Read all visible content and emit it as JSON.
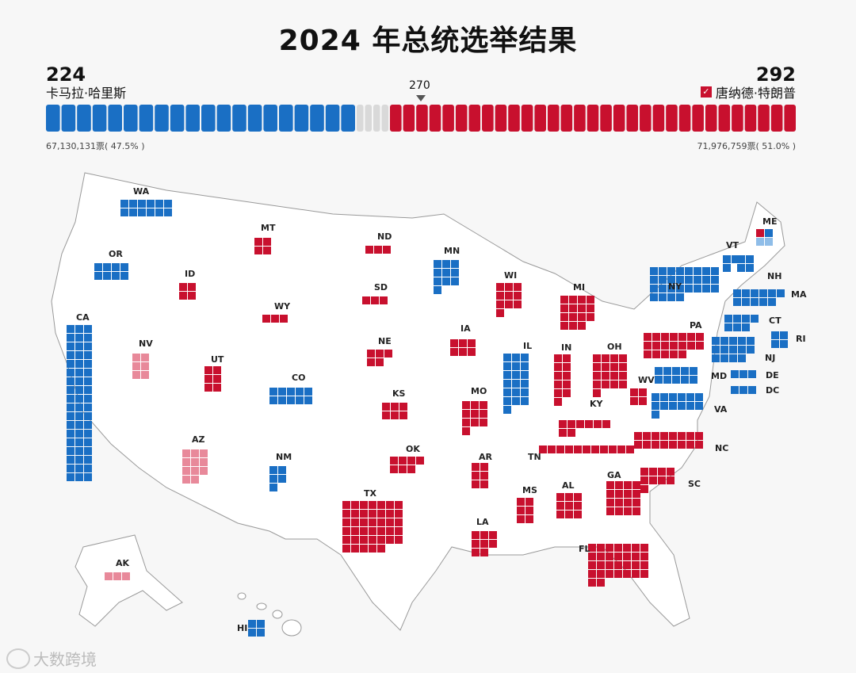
{
  "title": "2024 年总统选举结果",
  "left": {
    "ev": "224",
    "name": "卡马拉·哈里斯",
    "votes": "67,130,131票( 47.5% )"
  },
  "right": {
    "ev": "292",
    "name": "唐纳德·特朗普",
    "votes": "71,976,759票( 51.0% )",
    "check": "✓"
  },
  "threshold": "270",
  "bar": {
    "blue_segments": 20,
    "gray_segments": 4,
    "red_segments": 31
  },
  "colors": {
    "dem": "#1a6fc4",
    "rep": "#c8102e",
    "dem_light": "#8fbde8",
    "rep_light": "#e8899a",
    "gray": "#d9d9d9"
  },
  "states": [
    {
      "abbr": "WA",
      "ev": 12,
      "party": "dem"
    },
    {
      "abbr": "OR",
      "ev": 8,
      "party": "dem"
    },
    {
      "abbr": "CA",
      "ev": 54,
      "party": "dem"
    },
    {
      "abbr": "NV",
      "ev": 6,
      "party": "rep_light"
    },
    {
      "abbr": "ID",
      "ev": 4,
      "party": "rep"
    },
    {
      "abbr": "MT",
      "ev": 4,
      "party": "rep"
    },
    {
      "abbr": "WY",
      "ev": 3,
      "party": "rep"
    },
    {
      "abbr": "UT",
      "ev": 6,
      "party": "rep"
    },
    {
      "abbr": "AZ",
      "ev": 11,
      "party": "rep_light"
    },
    {
      "abbr": "CO",
      "ev": 10,
      "party": "dem"
    },
    {
      "abbr": "NM",
      "ev": 5,
      "party": "dem"
    },
    {
      "abbr": "ND",
      "ev": 3,
      "party": "rep"
    },
    {
      "abbr": "SD",
      "ev": 3,
      "party": "rep"
    },
    {
      "abbr": "NE",
      "ev": 5,
      "party": "rep"
    },
    {
      "abbr": "KS",
      "ev": 6,
      "party": "rep"
    },
    {
      "abbr": "OK",
      "ev": 7,
      "party": "rep"
    },
    {
      "abbr": "TX",
      "ev": 40,
      "party": "rep"
    },
    {
      "abbr": "MN",
      "ev": 10,
      "party": "dem"
    },
    {
      "abbr": "IA",
      "ev": 6,
      "party": "rep"
    },
    {
      "abbr": "MO",
      "ev": 10,
      "party": "rep"
    },
    {
      "abbr": "AR",
      "ev": 6,
      "party": "rep"
    },
    {
      "abbr": "LA",
      "ev": 8,
      "party": "rep"
    },
    {
      "abbr": "WI",
      "ev": 10,
      "party": "rep"
    },
    {
      "abbr": "IL",
      "ev": 19,
      "party": "dem"
    },
    {
      "abbr": "MI",
      "ev": 15,
      "party": "rep"
    },
    {
      "abbr": "IN",
      "ev": 11,
      "party": "rep"
    },
    {
      "abbr": "OH",
      "ev": 17,
      "party": "rep"
    },
    {
      "abbr": "KY",
      "ev": 8,
      "party": "rep"
    },
    {
      "abbr": "TN",
      "ev": 11,
      "party": "rep"
    },
    {
      "abbr": "MS",
      "ev": 6,
      "party": "rep"
    },
    {
      "abbr": "AL",
      "ev": 9,
      "party": "rep"
    },
    {
      "abbr": "GA",
      "ev": 16,
      "party": "rep"
    },
    {
      "abbr": "FL",
      "ev": 30,
      "party": "rep"
    },
    {
      "abbr": "SC",
      "ev": 9,
      "party": "rep"
    },
    {
      "abbr": "NC",
      "ev": 16,
      "party": "rep"
    },
    {
      "abbr": "VA",
      "ev": 13,
      "party": "dem"
    },
    {
      "abbr": "WV",
      "ev": 4,
      "party": "rep"
    },
    {
      "abbr": "PA",
      "ev": 19,
      "party": "rep"
    },
    {
      "abbr": "NY",
      "ev": 28,
      "party": "dem"
    },
    {
      "abbr": "VT",
      "ev": 3,
      "party": "dem"
    },
    {
      "abbr": "NH",
      "ev": 4,
      "party": "dem"
    },
    {
      "abbr": "ME",
      "ev": 4,
      "party": "mixed"
    },
    {
      "abbr": "MA",
      "ev": 11,
      "party": "dem"
    },
    {
      "abbr": "CT",
      "ev": 7,
      "party": "dem"
    },
    {
      "abbr": "RI",
      "ev": 4,
      "party": "dem"
    },
    {
      "abbr": "NJ",
      "ev": 14,
      "party": "dem"
    },
    {
      "abbr": "DE",
      "ev": 3,
      "party": "dem"
    },
    {
      "abbr": "MD",
      "ev": 10,
      "party": "dem"
    },
    {
      "abbr": "DC",
      "ev": 3,
      "party": "dem"
    },
    {
      "abbr": "AK",
      "ev": 3,
      "party": "rep_light"
    },
    {
      "abbr": "HI",
      "ev": 4,
      "party": "dem"
    }
  ],
  "watermark": "大数跨境"
}
